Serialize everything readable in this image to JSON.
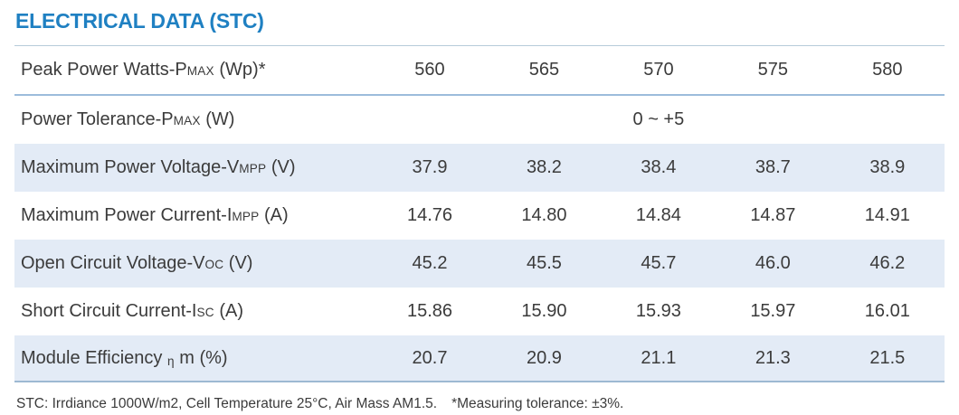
{
  "title": "ELECTRICAL DATA (STC)",
  "colors": {
    "accent_blue": "#1f80c2",
    "row_highlight": "#e3ebf6",
    "rule_top": "#b6cbd9",
    "rule_strong": "#9cbcdb",
    "text": "#3b3b3b"
  },
  "table": {
    "rows": [
      {
        "label_main": "Peak Power Watts-P",
        "label_sub": "MAX",
        "label_unit": " (Wp)*",
        "values": [
          "560",
          "565",
          "570",
          "575",
          "580"
        ]
      },
      {
        "label_main": "Power Tolerance-P",
        "label_sub": "MAX",
        "label_unit": " (W)",
        "span_value": "0 ~ +5"
      },
      {
        "label_main": "Maximum Power Voltage-V",
        "label_sub": "MPP",
        "label_unit": " (V)",
        "values": [
          "37.9",
          "38.2",
          "38.4",
          "38.7",
          "38.9"
        ]
      },
      {
        "label_main": "Maximum Power Current-I",
        "label_sub": "MPP",
        "label_unit": " (A)",
        "values": [
          "14.76",
          "14.80",
          "14.84",
          "14.87",
          "14.91"
        ]
      },
      {
        "label_main": "Open Circuit Voltage-V",
        "label_sub": "OC",
        "label_unit": " (V)",
        "values": [
          "45.2",
          "45.5",
          "45.7",
          "46.0",
          "46.2"
        ]
      },
      {
        "label_main": "Short Circuit Current-I",
        "label_sub": "SC",
        "label_unit": " (A)",
        "values": [
          "15.86",
          "15.90",
          "15.93",
          "15.97",
          "16.01"
        ]
      },
      {
        "label_main": "Module Efficiency ",
        "label_sub": "η",
        "label_unit": " m (%)",
        "values": [
          "20.7",
          "20.9",
          "21.1",
          "21.3",
          "21.5"
        ]
      }
    ]
  },
  "footer": {
    "note_stc": "STC: Irrdiance 1000W/m2, Cell Temperature 25°C, Air Mass AM1.5.",
    "note_tolerance": "*Measuring tolerance: ±3%."
  }
}
